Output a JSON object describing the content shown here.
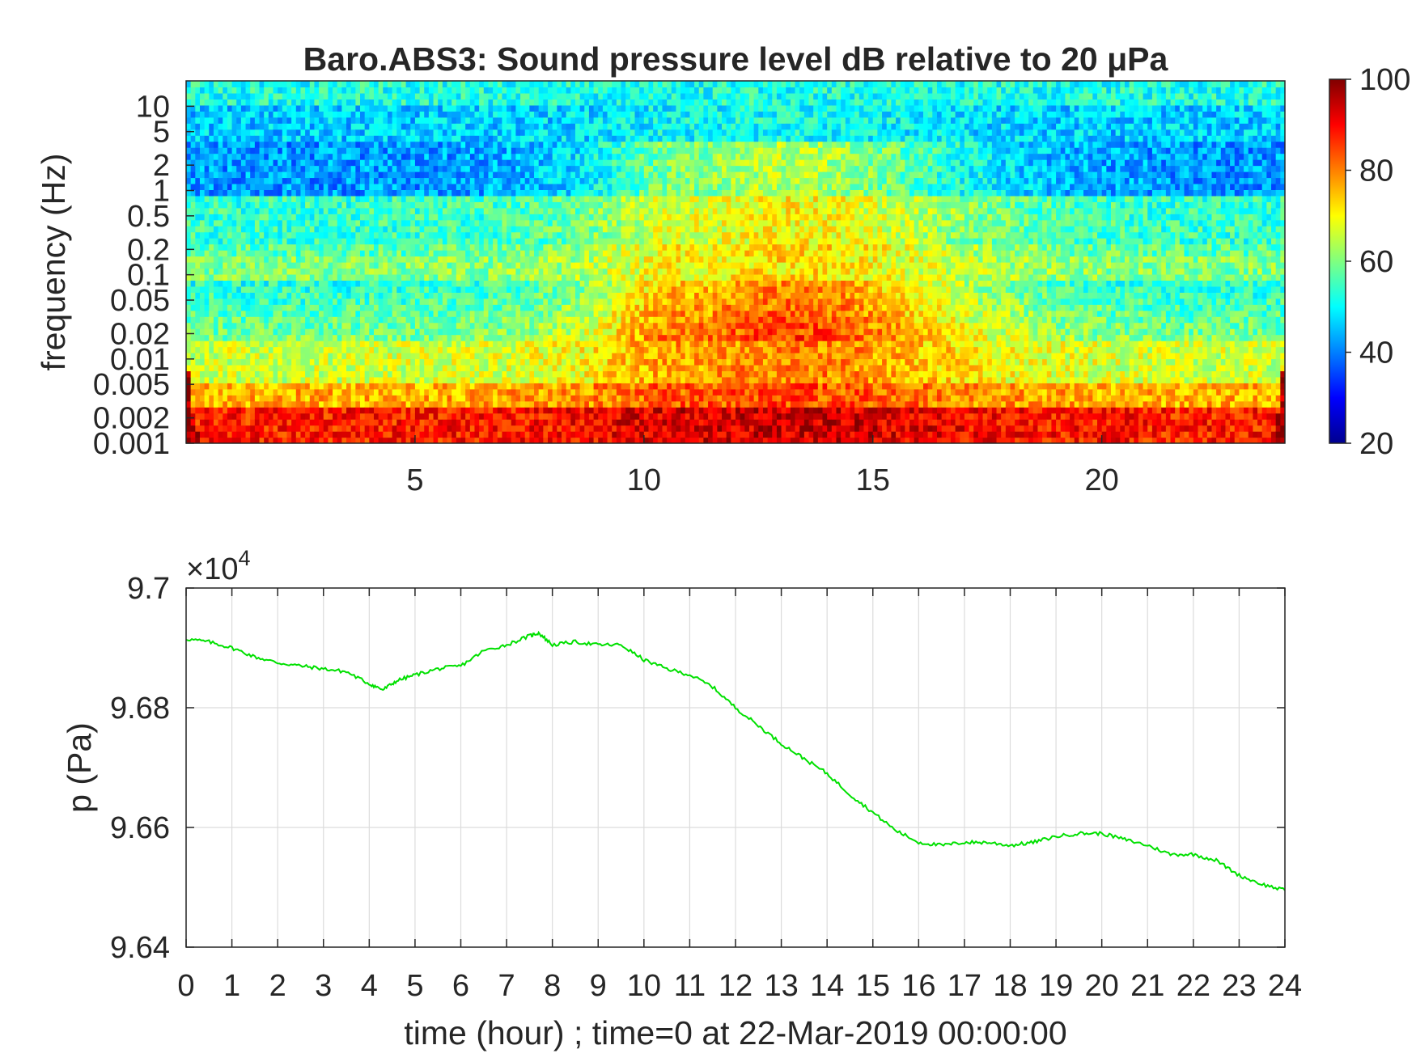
{
  "chart_data": [
    {
      "type": "heatmap",
      "title": "Baro.ABS3: Sound pressure level dB relative to 20 μPa",
      "ylabel": "frequency (Hz)",
      "xlabel": "",
      "x_ticks": [
        5,
        10,
        15,
        20
      ],
      "x_tick_labels": [
        "5",
        "10",
        "15",
        "20"
      ],
      "xlim": [
        0,
        24
      ],
      "y_scale": "log",
      "ylim": [
        0.001,
        20
      ],
      "y_ticks": [
        0.001,
        0.002,
        0.005,
        0.01,
        0.02,
        0.05,
        0.1,
        0.2,
        0.5,
        1,
        2,
        5,
        10
      ],
      "y_tick_labels": [
        "0.001",
        "0.002",
        "0.005",
        "0.01",
        "0.02",
        "0.05",
        "0.1",
        "0.2",
        "0.5",
        "1",
        "2",
        "5",
        "10"
      ],
      "colorbar": {
        "colormap": "jet",
        "range": [
          20,
          100
        ],
        "ticks": [
          20,
          40,
          60,
          80,
          100
        ],
        "tick_labels": [
          "20",
          "40",
          "60",
          "80",
          "100"
        ]
      }
    },
    {
      "type": "line",
      "xlabel": "time (hour) ; time=0 at 22-Mar-2019 00:00:00",
      "ylabel": "p (Pa)",
      "y_exponent_label": "×10",
      "y_exponent_power": "4",
      "xlim": [
        0,
        24
      ],
      "ylim": [
        9.64,
        9.7
      ],
      "x_ticks": [
        0,
        1,
        2,
        3,
        4,
        5,
        6,
        7,
        8,
        9,
        10,
        11,
        12,
        13,
        14,
        15,
        16,
        17,
        18,
        19,
        20,
        21,
        22,
        23,
        24
      ],
      "x_tick_labels": [
        "0",
        "1",
        "2",
        "3",
        "4",
        "5",
        "6",
        "7",
        "8",
        "9",
        "10",
        "11",
        "12",
        "13",
        "14",
        "15",
        "16",
        "17",
        "18",
        "19",
        "20",
        "21",
        "22",
        "23",
        "24"
      ],
      "y_ticks": [
        9.64,
        9.66,
        9.68,
        9.7
      ],
      "y_tick_labels": [
        "9.64",
        "9.66",
        "9.68",
        "9.7"
      ],
      "grid": true,
      "line_color": "#00e000",
      "series": [
        {
          "x": [
            0,
            0.5,
            1,
            1.5,
            2,
            2.5,
            3,
            3.5,
            4,
            4.3,
            4.6,
            5,
            5.5,
            6,
            6.5,
            7,
            7.5,
            7.7,
            8,
            8.5,
            9,
            9.5,
            10,
            10.5,
            11,
            11.5,
            12,
            12.5,
            13,
            13.5,
            14,
            14.5,
            15,
            15.5,
            16,
            16.5,
            17,
            17.5,
            18,
            18.5,
            19,
            19.5,
            20,
            20.5,
            21,
            21.5,
            22,
            22.5,
            23,
            23.5,
            24
          ],
          "y": [
            9.6915,
            9.691,
            9.69,
            9.6885,
            9.6875,
            9.687,
            9.6865,
            9.686,
            9.684,
            9.683,
            9.6845,
            9.6855,
            9.6865,
            9.687,
            9.6895,
            9.6905,
            9.692,
            9.6925,
            9.6905,
            9.691,
            9.6905,
            9.6905,
            9.688,
            9.6865,
            9.6855,
            9.6835,
            9.68,
            9.677,
            9.674,
            9.6715,
            9.669,
            9.6655,
            9.6625,
            9.6595,
            9.6575,
            9.657,
            9.6575,
            9.6575,
            9.657,
            9.6575,
            9.6585,
            9.659,
            9.659,
            9.658,
            9.657,
            9.6555,
            9.6555,
            9.6545,
            9.652,
            9.6505,
            9.6495
          ]
        }
      ]
    }
  ]
}
